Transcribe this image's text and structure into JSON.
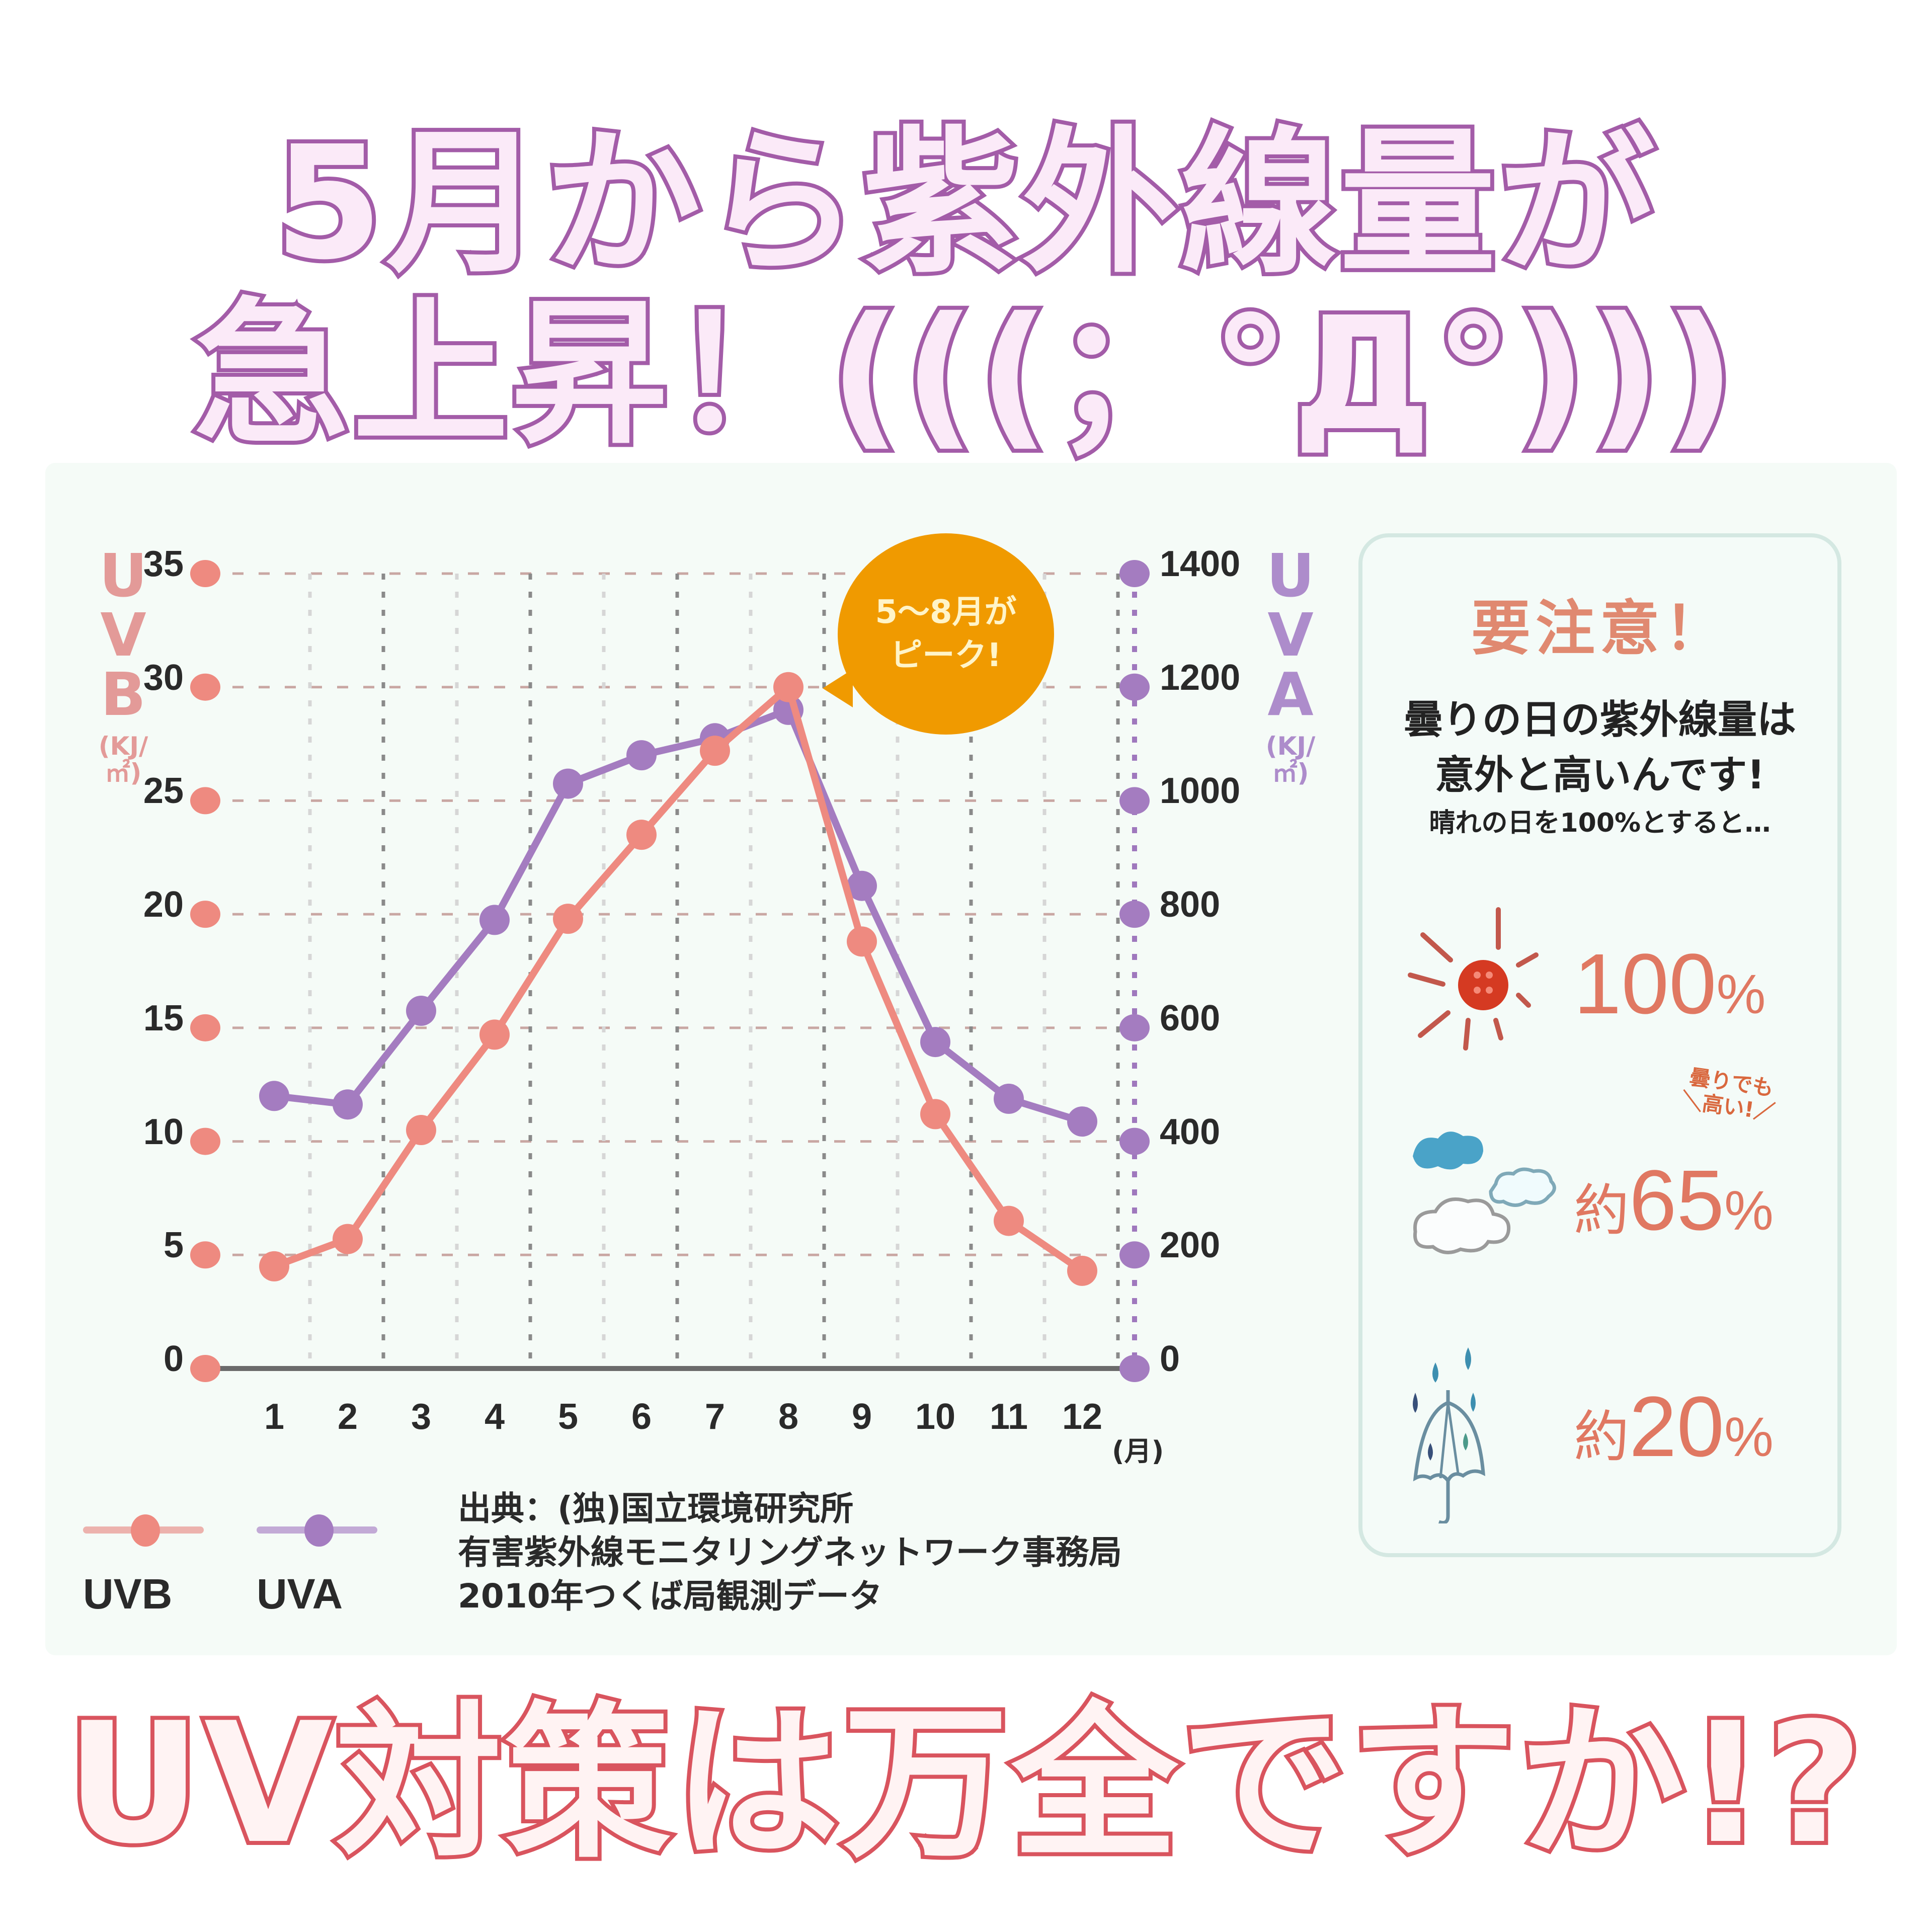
{
  "title": {
    "line1": "5月から紫外線量が",
    "line2": "急上昇！(((；°Д°)))"
  },
  "bottom_question": "UV対策は万全ですか!?",
  "colors": {
    "title_stroke": "#a35ca8",
    "question_stroke": "#d9545e",
    "uvb": "#ee8a80",
    "uva": "#a47cc0",
    "callout": "#f09a00",
    "percent_text": "#e07862",
    "panel_border": "#d4e8e2"
  },
  "chart": {
    "left_axis": {
      "title": "UVB",
      "unit": "(KJ/㎡)",
      "ticks": [
        "35",
        "30",
        "25",
        "20",
        "15",
        "10",
        "5",
        "0"
      ]
    },
    "right_axis": {
      "title": "UVA",
      "unit": "(KJ/㎡)",
      "ticks": [
        "1400",
        "1200",
        "1000",
        "800",
        "600",
        "400",
        "200",
        "0"
      ]
    },
    "x_ticks": [
      "1",
      "2",
      "3",
      "4",
      "5",
      "6",
      "7",
      "8",
      "9",
      "10",
      "11",
      "12"
    ],
    "x_unit": "(月)",
    "callout": {
      "line1": "5〜8月が",
      "line2": "ピーク!"
    },
    "legend": [
      {
        "label": "UVB",
        "icon": "line-dot-marker"
      },
      {
        "label": "UVA",
        "icon": "line-dot-marker"
      }
    ],
    "source": {
      "line1": "出典：(独)国立環境研究所",
      "line2": "有害紫外線モニタリングネットワーク事務局",
      "line3": "2010年つくば局観測データ"
    }
  },
  "info_panel": {
    "heading": "要注意！",
    "line1": "曇りの日の紫外線量は",
    "line2": "意外と高いんです!",
    "line3": "晴れの日を100%とすると…",
    "rows": [
      {
        "icon": "sun-icon",
        "prefix": "",
        "value": "100",
        "sign": "%"
      },
      {
        "icon": "cloud-icon",
        "prefix": "約",
        "value": "65",
        "sign": "%",
        "note_line1": "曇りでも",
        "note_line2": "＼高い!／"
      },
      {
        "icon": "umbrella-rain-icon",
        "prefix": "約",
        "value": "20",
        "sign": "%"
      }
    ]
  },
  "chart_data": {
    "type": "line",
    "title": "",
    "x": [
      1,
      2,
      3,
      4,
      5,
      6,
      7,
      8,
      9,
      10,
      11,
      12
    ],
    "categories": [
      "1",
      "2",
      "3",
      "4",
      "5",
      "6",
      "7",
      "8",
      "9",
      "10",
      "11",
      "12"
    ],
    "xlabel": "(月)",
    "series": [
      {
        "name": "UVB",
        "axis": "left",
        "color": "#ee8a80",
        "values": [
          4.5,
          5.7,
          10.5,
          14.7,
          19.8,
          23.5,
          27.2,
          30.0,
          18.8,
          11.2,
          6.5,
          4.3
        ]
      },
      {
        "name": "UVA",
        "axis": "right",
        "color": "#a47cc0",
        "values": [
          480,
          465,
          630,
          790,
          1030,
          1080,
          1110,
          1160,
          850,
          575,
          475,
          435
        ]
      }
    ],
    "ylabel": "UVB (KJ/㎡)",
    "ylim": [
      0,
      35
    ],
    "y_ticks": [
      0,
      5,
      10,
      15,
      20,
      25,
      30,
      35
    ],
    "y2label": "UVA (KJ/㎡)",
    "y2lim": [
      0,
      1400
    ],
    "y2_ticks": [
      0,
      200,
      400,
      600,
      800,
      1000,
      1200,
      1400
    ],
    "annotations": [
      "5〜8月がピーク!"
    ],
    "grid": true,
    "legend_position": "bottom-left",
    "source": "出典：(独)国立環境研究所 有害紫外線モニタリングネットワーク事務局 2010年つくば局観測データ"
  }
}
